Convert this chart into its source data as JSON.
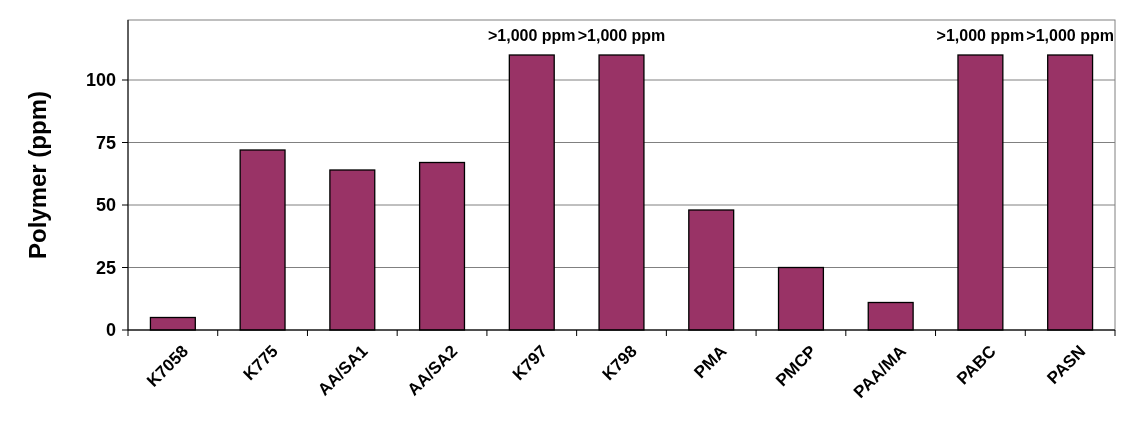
{
  "chart_data": {
    "type": "bar",
    "ylabel": "Polymer (ppm)",
    "categories": [
      "K7058",
      "K775",
      "AA/SA1",
      "AA/SA2",
      "K797",
      "K798",
      "PMA",
      "PMCP",
      "PAA/MA",
      "PABC",
      "PASN"
    ],
    "values": [
      5,
      72,
      64,
      67,
      110,
      110,
      48,
      25,
      11,
      110,
      110
    ],
    "color": "#993366",
    "ylim": [
      0,
      124
    ],
    "yticks": [
      0,
      25,
      50,
      75,
      100
    ],
    "grid": "y",
    "annotations": [
      {
        "text": ">1,000 ppm",
        "x": "K797",
        "y": 110
      },
      {
        "text": ">1,000 ppm",
        "x": "K798",
        "y": 110
      },
      {
        "text": ">1,000 ppm",
        "x": "PABC",
        "y": 110
      },
      {
        "text": ">1,000 ppm",
        "x": "PASN",
        "y": 110
      }
    ]
  }
}
